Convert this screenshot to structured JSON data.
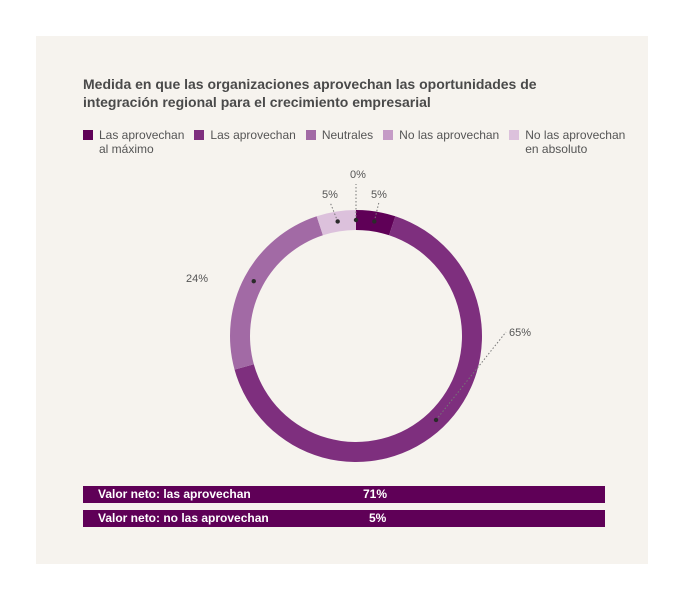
{
  "title": "Medida en que las organizaciones aprovechan las oportunidades de integración regional para el crecimiento empresarial",
  "colors": {
    "background": "#f6f3ee",
    "series": [
      "#5f0057",
      "#7e2f7e",
      "#a26aa5",
      "#c59bc6",
      "#dcc1dc"
    ],
    "net_bar": "#5f0057"
  },
  "chart_data": {
    "type": "pie",
    "subtype": "donut",
    "title": "Medida en que las organizaciones aprovechan las oportunidades de integración regional para el crecimiento empresarial",
    "legend_position": "top",
    "legend": [
      [
        "Las aprovechan",
        "al máximo"
      ],
      [
        "Las aprovechan"
      ],
      [
        "Neutrales"
      ],
      [
        "No las aprovechan"
      ],
      [
        "No las aprovechan",
        "en absoluto"
      ]
    ],
    "categories": [
      "Las aprovechan al máximo",
      "Las aprovechan",
      "Neutrales",
      "No las aprovechan",
      "No las aprovechan en absoluto"
    ],
    "values": [
      5,
      65,
      24,
      0,
      5
    ],
    "value_labels": [
      "5%",
      "65%",
      "24%",
      "0%",
      "5%"
    ]
  },
  "net": [
    {
      "label": "Valor neto: las aprovechan",
      "value": "71%"
    },
    {
      "label": "Valor neto: no las aprovechan",
      "value": "5%"
    }
  ]
}
